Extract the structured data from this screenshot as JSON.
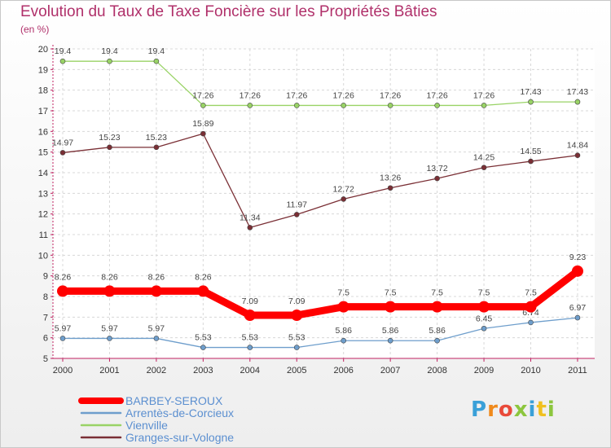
{
  "chart_data": {
    "type": "line",
    "title": "Evolution du Taux de Taxe Foncière sur les Propriétés Bâties",
    "subtitle": "(en %)",
    "x": [
      "2000",
      "2001",
      "2002",
      "2003",
      "2004",
      "2005",
      "2006",
      "2007",
      "2008",
      "2009",
      "2010",
      "2011"
    ],
    "ylim": [
      5,
      20
    ],
    "yticks": [
      "5",
      "6",
      "7",
      "8",
      "9",
      "10",
      "11",
      "12",
      "13",
      "14",
      "15",
      "16",
      "17",
      "18",
      "19",
      "20"
    ],
    "grid": true,
    "legend_position": "bottom-left",
    "series": [
      {
        "name": "BARBEY-SEROUX",
        "color": "#ff0000",
        "emphasis": true,
        "values": [
          8.26,
          8.26,
          8.26,
          8.26,
          7.09,
          7.09,
          7.5,
          7.5,
          7.5,
          7.5,
          7.5,
          9.23
        ],
        "labels": [
          "8.26",
          "8.26",
          "8.26",
          "8.26",
          "7.09",
          "7.09",
          "7.5",
          "7.5",
          "7.5",
          "7.5",
          "7.5",
          "9.23"
        ]
      },
      {
        "name": "Arrentès-de-Corcieux",
        "color": "#6e9ecc",
        "values": [
          5.97,
          5.97,
          5.97,
          5.53,
          5.53,
          5.53,
          5.86,
          5.86,
          5.86,
          6.45,
          6.74,
          6.97
        ],
        "labels": [
          "5.97",
          "5.97",
          "5.97",
          "5.53",
          "5.53",
          "5.53",
          "5.86",
          "5.86",
          "5.86",
          "6.45",
          "6.74",
          "6.97"
        ]
      },
      {
        "name": "Vienville",
        "color": "#99d366",
        "values": [
          19.4,
          19.4,
          19.4,
          17.26,
          17.26,
          17.26,
          17.26,
          17.26,
          17.26,
          17.26,
          17.43,
          17.43
        ],
        "labels": [
          "19.4",
          "19.4",
          "19.4",
          "17.26",
          "17.26",
          "17.26",
          "17.26",
          "17.26",
          "17.26",
          "17.26",
          "17.43",
          "17.43"
        ]
      },
      {
        "name": "Granges-sur-Vologne",
        "color": "#7a2f35",
        "values": [
          14.97,
          15.23,
          15.23,
          15.89,
          11.34,
          11.97,
          12.72,
          13.26,
          13.72,
          14.25,
          14.55,
          14.84
        ],
        "labels": [
          "14.97",
          "15.23",
          "15.23",
          "15.89",
          "11.34",
          "11.97",
          "12.72",
          "13.26",
          "13.72",
          "14.25",
          "14.55",
          "14.84"
        ]
      }
    ]
  },
  "logo": {
    "letters": [
      {
        "ch": "P",
        "color": "#3aa0d8"
      },
      {
        "ch": "r",
        "color": "#f08a1c"
      },
      {
        "ch": "o",
        "color": "#e94a3a"
      },
      {
        "ch": "x",
        "color": "#8cc63e"
      },
      {
        "ch": "i",
        "color": "#3aa0d8"
      },
      {
        "ch": "t",
        "color": "#f0c020"
      },
      {
        "ch": "i",
        "color": "#8cc63e"
      }
    ]
  }
}
